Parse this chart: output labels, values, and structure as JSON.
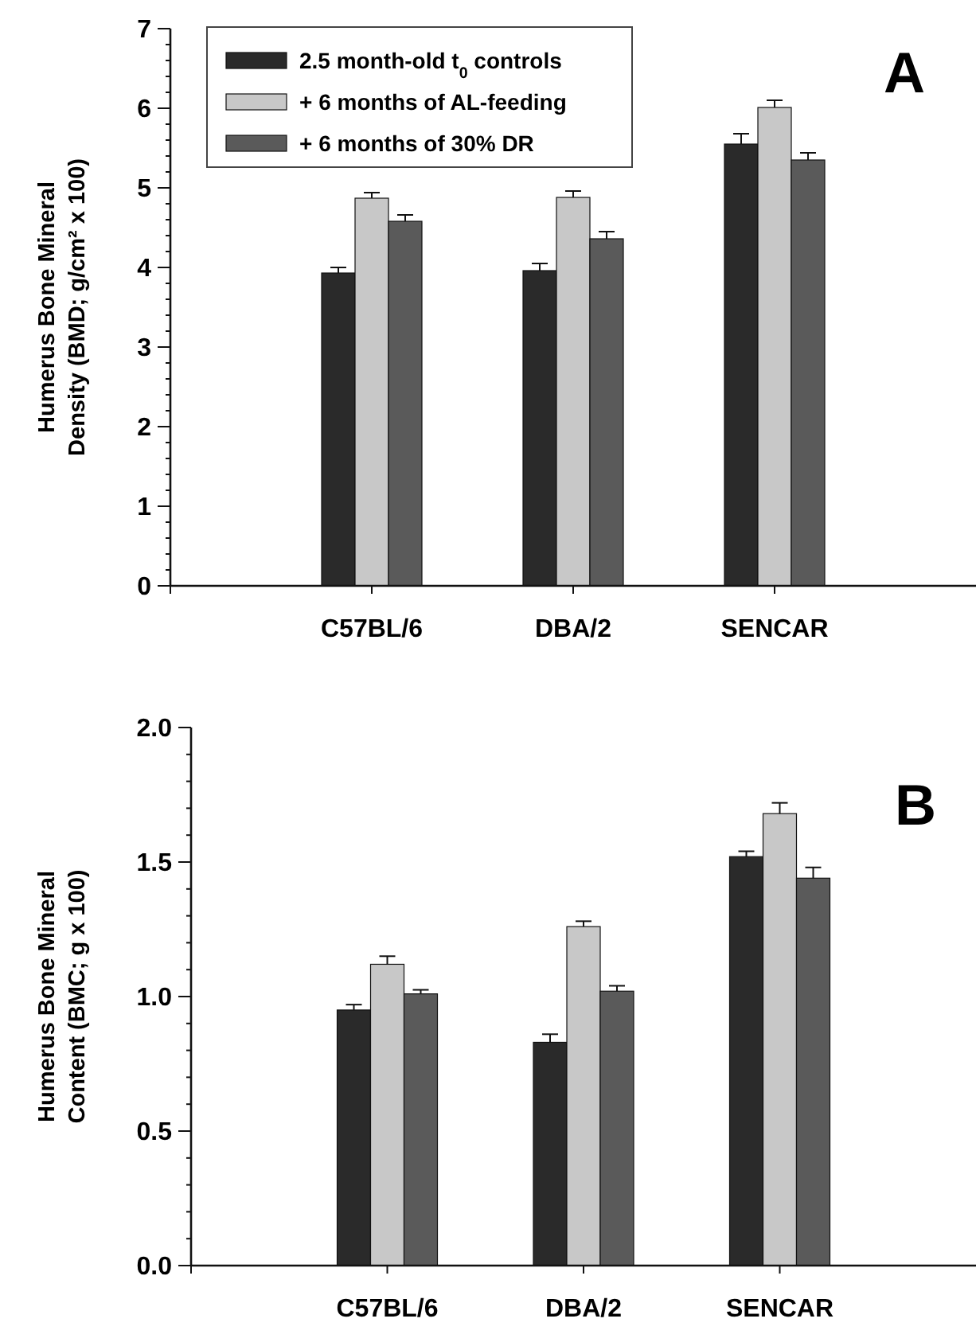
{
  "chart_data": [
    {
      "type": "bar",
      "title": "A",
      "ylabel": "Humerus Bone Mineral\nDensity (BMD; g/cm² x 100)",
      "categories": [
        "C57BL/6",
        "DBA/2",
        "SENCAR"
      ],
      "series": [
        {
          "name": "2.5 month-old t$_{0}$ controls",
          "color": "#2a2a2a",
          "values": [
            3.93,
            3.96,
            5.55
          ],
          "errors": [
            0.07,
            0.09,
            0.13
          ]
        },
        {
          "name": "+ 6 months of AL-feeding",
          "color": "#c8c8c8",
          "values": [
            4.87,
            4.88,
            6.01
          ],
          "errors": [
            0.07,
            0.08,
            0.09
          ]
        },
        {
          "name": "+ 6 months of 30% DR",
          "color": "#5a5a5a",
          "values": [
            4.58,
            4.36,
            5.35
          ],
          "errors": [
            0.08,
            0.09,
            0.09
          ]
        }
      ],
      "ylim": [
        0,
        7
      ],
      "yticks": [
        0,
        {
          "value": 0.2,
          "label": null
        },
        {
          "value": 0.4,
          "label": null
        },
        {
          "value": 0.6,
          "label": null
        },
        {
          "value": 0.8,
          "label": null
        },
        1,
        {
          "value": 1.2,
          "label": null
        },
        {
          "value": 1.4,
          "label": null
        },
        {
          "value": 1.6,
          "label": null
        },
        {
          "value": 1.8,
          "label": null
        },
        2,
        {
          "value": 2.2,
          "label": null
        },
        {
          "value": 2.4,
          "label": null
        },
        {
          "value": 2.6,
          "label": null
        },
        {
          "value": 2.8,
          "label": null
        },
        3,
        {
          "value": 3.2,
          "label": null
        },
        {
          "value": 3.4,
          "label": null
        },
        {
          "value": 3.6,
          "label": null
        },
        {
          "value": 3.8,
          "label": null
        },
        4,
        {
          "value": 4.2,
          "label": null
        },
        {
          "value": 4.4,
          "label": null
        },
        {
          "value": 4.6,
          "label": null
        },
        {
          "value": 4.8,
          "label": null
        },
        5,
        {
          "value": 5.2,
          "label": null
        },
        {
          "value": 5.4,
          "label": null
        },
        {
          "value": 5.6,
          "label": null
        },
        {
          "value": 5.8,
          "label": null
        },
        6,
        {
          "value": 6.2,
          "label": null
        },
        {
          "value": 6.4,
          "label": null
        },
        {
          "value": 6.6,
          "label": null
        },
        {
          "value": 6.8,
          "label": null
        },
        7
      ],
      "legend": "top left",
      "grid": false
    },
    {
      "type": "bar",
      "title": "B",
      "ylabel": "Humerus Bone Mineral\nContent (BMC; g x 100)",
      "categories": [
        "C57BL/6",
        "DBA/2",
        "SENCAR"
      ],
      "series": [
        {
          "color": "#2a2a2a",
          "values": [
            0.95,
            0.83,
            1.52
          ],
          "errors": [
            0.02,
            0.03,
            0.02
          ]
        },
        {
          "color": "#c8c8c8",
          "values": [
            1.12,
            1.26,
            1.68
          ],
          "errors": [
            0.03,
            0.02,
            0.04
          ]
        },
        {
          "color": "#5a5a5a",
          "values": [
            1.01,
            1.02,
            1.44
          ],
          "errors": [
            0.015,
            0.02,
            0.04
          ]
        }
      ],
      "ylim": [
        0,
        2
      ],
      "yticks": [
        {
          "value": 0,
          "label": "0.0"
        },
        {
          "value": 0.1,
          "label": null
        },
        {
          "value": 0.2,
          "label": null
        },
        {
          "value": 0.3,
          "label": null
        },
        {
          "value": 0.4,
          "label": null
        },
        0.5,
        {
          "value": 0.6,
          "label": null
        },
        {
          "value": 0.7,
          "label": null
        },
        {
          "value": 0.8,
          "label": null
        },
        {
          "value": 0.9,
          "label": null
        },
        {
          "value": 1,
          "label": "1.0"
        },
        {
          "value": 1.1,
          "label": null
        },
        {
          "value": 1.2,
          "label": null
        },
        {
          "value": 1.3,
          "label": null
        },
        {
          "value": 1.4,
          "label": null
        },
        1.5,
        {
          "value": 1.6,
          "label": null
        },
        {
          "value": 1.7,
          "label": null
        },
        {
          "value": 1.8,
          "label": null
        },
        {
          "value": 1.9,
          "label": null
        },
        {
          "value": 2,
          "label": "2.0"
        }
      ],
      "legend": false,
      "grid": false
    }
  ]
}
